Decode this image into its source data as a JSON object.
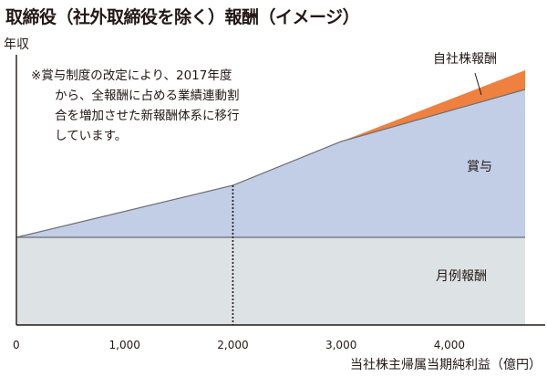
{
  "title": "取締役（社外取締役を除く）報酬（イメージ）",
  "note": [
    "※賞与制度の改定により、2017年度",
    "から、全報酬に占める業績連動割",
    "合を増加させた新報酬体系に移行",
    "しています。"
  ],
  "colors": {
    "base": "#dde2e4",
    "bonus": "#c2cde6",
    "stock": "#ee8040",
    "line": "#6d6f72"
  },
  "chart_data": {
    "type": "area",
    "title": "取締役（社外取締役を除く）報酬（イメージ）",
    "xlabel": "当社株主帰属当期純利益（億円）",
    "ylabel": "年収",
    "xlim": [
      0,
      4700
    ],
    "ylim": [
      0,
      100
    ],
    "x_ticks": [
      "0",
      "1,000",
      "2,000",
      "3,000",
      "4,000"
    ],
    "x_tick_values": [
      0,
      1000,
      2000,
      3000,
      4000
    ],
    "x": [
      0,
      2000,
      3000,
      4700
    ],
    "series": [
      {
        "name": "月例報酬",
        "values": [
          32,
          32,
          32,
          32
        ]
      },
      {
        "name": "賞与",
        "values": [
          0,
          19,
          35,
          54
        ]
      },
      {
        "name": "自社株報酬",
        "values": [
          0,
          0,
          0,
          7
        ]
      }
    ],
    "annotations": [
      {
        "type": "vertical-dotted-line",
        "x": 2000
      }
    ],
    "legend": "inline labels"
  }
}
